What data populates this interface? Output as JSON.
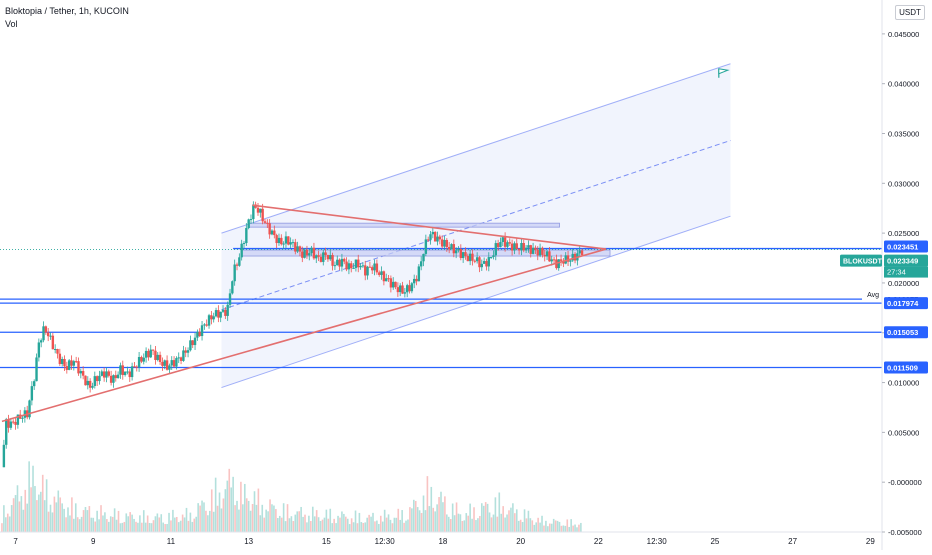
{
  "header": {
    "symbol_line": "Bloktopia / Tether, 1h, KUCOIN",
    "volume_label": "Vol"
  },
  "chart_data": {
    "type": "candlestick",
    "title": "Bloktopia / Tether, 1h, KUCOIN",
    "y_unit": "USDT",
    "ylim": [
      -0.005,
      0.0484
    ],
    "y_ticks": [
      "0.045000",
      "0.040000",
      "0.035000",
      "0.030000",
      "0.025000",
      "0.020000",
      "0.015000",
      "0.010000",
      "0.005000",
      "-0.000000",
      "-0.005000"
    ],
    "y_tick_values": [
      0.045,
      0.04,
      0.035,
      0.03,
      0.025,
      0.02,
      0.015,
      0.01,
      0.005,
      0,
      -0.005
    ],
    "x_ticks": [
      "7",
      "9",
      "11",
      "13",
      "15",
      "12:30",
      "18",
      "20",
      "22",
      "12:30",
      "25",
      "27",
      "29"
    ],
    "x_tick_days": [
      7,
      9,
      11,
      13,
      15,
      16.5,
      18,
      20,
      22,
      23.5,
      25,
      27,
      29
    ],
    "x_range_days": [
      6.6,
      29.3
    ],
    "close_series": [
      [
        6.65,
        0.0015
      ],
      [
        6.75,
        0.006
      ],
      [
        6.9,
        0.0058
      ],
      [
        7.1,
        0.0065
      ],
      [
        7.3,
        0.0069
      ],
      [
        7.5,
        0.011
      ],
      [
        7.6,
        0.014
      ],
      [
        7.75,
        0.0155
      ],
      [
        7.9,
        0.0143
      ],
      [
        8.1,
        0.0125
      ],
      [
        8.3,
        0.0115
      ],
      [
        8.5,
        0.0122
      ],
      [
        8.7,
        0.0108
      ],
      [
        8.9,
        0.0095
      ],
      [
        9.1,
        0.0105
      ],
      [
        9.3,
        0.011
      ],
      [
        9.5,
        0.0102
      ],
      [
        9.7,
        0.0113
      ],
      [
        9.9,
        0.0108
      ],
      [
        10.1,
        0.0118
      ],
      [
        10.3,
        0.0126
      ],
      [
        10.5,
        0.0132
      ],
      [
        10.7,
        0.0122
      ],
      [
        10.9,
        0.0116
      ],
      [
        11.1,
        0.0121
      ],
      [
        11.3,
        0.0127
      ],
      [
        11.5,
        0.0138
      ],
      [
        11.7,
        0.0149
      ],
      [
        11.9,
        0.016
      ],
      [
        12.1,
        0.0168
      ],
      [
        12.3,
        0.017
      ],
      [
        12.45,
        0.0172
      ],
      [
        12.6,
        0.021
      ],
      [
        12.75,
        0.0225
      ],
      [
        12.85,
        0.024
      ],
      [
        13.0,
        0.0262
      ],
      [
        13.15,
        0.0278
      ],
      [
        13.3,
        0.027
      ],
      [
        13.45,
        0.0258
      ],
      [
        13.6,
        0.025
      ],
      [
        13.8,
        0.024
      ],
      [
        14.0,
        0.0243
      ],
      [
        14.2,
        0.0236
      ],
      [
        14.4,
        0.0228
      ],
      [
        14.6,
        0.0232
      ],
      [
        14.8,
        0.0224
      ],
      [
        15.0,
        0.0229
      ],
      [
        15.2,
        0.0218
      ],
      [
        15.4,
        0.0222
      ],
      [
        15.6,
        0.0215
      ],
      [
        15.8,
        0.022
      ],
      [
        16.0,
        0.0212
      ],
      [
        16.2,
        0.0217
      ],
      [
        16.4,
        0.0208
      ],
      [
        16.6,
        0.0202
      ],
      [
        16.8,
        0.0195
      ],
      [
        17.0,
        0.0191
      ],
      [
        17.2,
        0.0198
      ],
      [
        17.35,
        0.0208
      ],
      [
        17.5,
        0.0232
      ],
      [
        17.65,
        0.025
      ],
      [
        17.8,
        0.0246
      ],
      [
        18.0,
        0.024
      ],
      [
        18.2,
        0.0235
      ],
      [
        18.4,
        0.0231
      ],
      [
        18.6,
        0.0226
      ],
      [
        18.8,
        0.0224
      ],
      [
        19.0,
        0.0218
      ],
      [
        19.2,
        0.0223
      ],
      [
        19.35,
        0.0235
      ],
      [
        19.5,
        0.0243
      ],
      [
        19.7,
        0.0238
      ],
      [
        19.9,
        0.0235
      ],
      [
        20.1,
        0.0236
      ],
      [
        20.3,
        0.0233
      ],
      [
        20.5,
        0.0231
      ],
      [
        20.7,
        0.0227
      ],
      [
        20.9,
        0.0219
      ],
      [
        21.1,
        0.0223
      ],
      [
        21.3,
        0.0224
      ],
      [
        21.45,
        0.0228
      ],
      [
        21.6,
        0.0233
      ]
    ],
    "volume_series": [
      [
        6.65,
        0.3
      ],
      [
        7.5,
        1.0
      ],
      [
        7.75,
        0.7
      ],
      [
        8.5,
        0.4
      ],
      [
        9.5,
        0.3
      ],
      [
        10.5,
        0.25
      ],
      [
        11.5,
        0.3
      ],
      [
        12.6,
        0.9
      ],
      [
        12.85,
        0.6
      ],
      [
        13.0,
        0.7
      ],
      [
        13.3,
        0.5
      ],
      [
        14.0,
        0.35
      ],
      [
        15.0,
        0.3
      ],
      [
        16.0,
        0.25
      ],
      [
        17.0,
        0.3
      ],
      [
        17.5,
        0.6
      ],
      [
        17.65,
        0.7
      ],
      [
        18.5,
        0.3
      ],
      [
        19.35,
        0.5
      ],
      [
        20.5,
        0.2
      ],
      [
        21.5,
        0.15
      ]
    ],
    "horizontal_levels": [
      {
        "value": 0.023451,
        "label": "0.023451"
      },
      {
        "value": 0.017974,
        "label": "0.017974"
      },
      {
        "value": 0.015053,
        "label": "0.015053"
      },
      {
        "value": 0.011509,
        "label": "0.011509"
      }
    ],
    "avg_level": {
      "value": 0.018377,
      "label": "Avg",
      "value_label": "0.018377"
    },
    "current_price": {
      "symbol": "BLOKUSDT",
      "value": 0.023349,
      "value_label": "0.023349",
      "countdown": "27:34"
    },
    "trendlines": {
      "triangle_upper": [
        [
          13.1,
          0.0278
        ],
        [
          22.2,
          0.0234
        ]
      ],
      "triangle_lower": [
        [
          6.65,
          0.0061
        ],
        [
          22.2,
          0.0234
        ]
      ],
      "channel_upper": [
        [
          12.3,
          0.025
        ],
        [
          25.4,
          0.042
        ]
      ],
      "channel_mid": [
        [
          12.3,
          0.0173
        ],
        [
          25.4,
          0.0343
        ]
      ],
      "channel_lower": [
        [
          12.3,
          0.0095
        ],
        [
          25.4,
          0.0267
        ]
      ]
    },
    "rect_zones": [
      {
        "x": [
          13.0,
          21.0
        ],
        "y": [
          0.0256,
          0.026
        ]
      },
      {
        "x": [
          12.8,
          22.3
        ],
        "y": [
          0.0227,
          0.0233
        ]
      }
    ],
    "flag_point": [
      25.1,
      0.0415
    ],
    "colors": {
      "up": "#26a69a",
      "down": "#ef5350",
      "level": "#2962ff",
      "triangle": "#e36f6f",
      "channel": "#7b8ff5"
    }
  }
}
